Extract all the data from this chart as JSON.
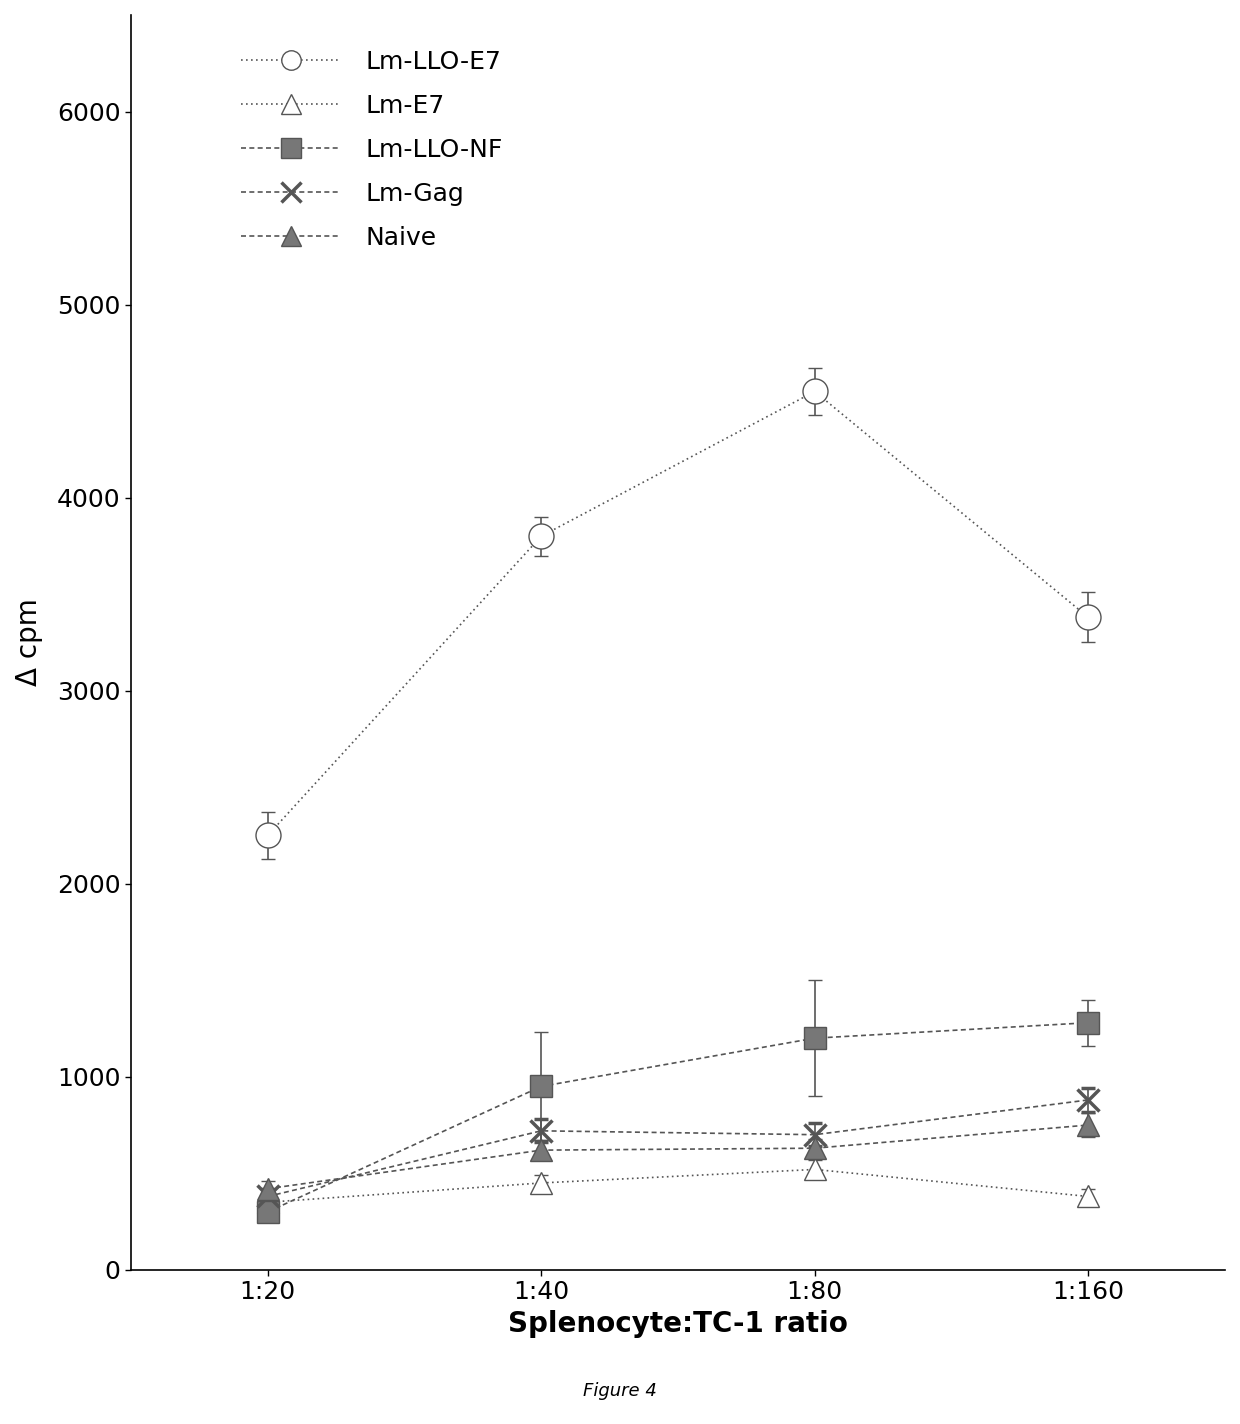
{
  "x_labels": [
    "1:20",
    "1:40",
    "1:80",
    "1:160"
  ],
  "x_values": [
    1,
    2,
    3,
    4
  ],
  "series": {
    "Lm-LLO-E7": {
      "y": [
        2250,
        3800,
        4550,
        3380
      ],
      "yerr": [
        120,
        100,
        120,
        130
      ],
      "marker": "o",
      "color": "#555555",
      "markersize": 18,
      "linewidth": 1.2,
      "markerfacecolor": "white",
      "markeredgecolor": "#555555",
      "dashed": false,
      "dotted_fine": true
    },
    "Lm-E7": {
      "y": [
        350,
        450,
        520,
        380
      ],
      "yerr": [
        30,
        40,
        50,
        40
      ],
      "marker": "^",
      "color": "#555555",
      "markersize": 16,
      "linewidth": 1.2,
      "markerfacecolor": "white",
      "markeredgecolor": "#555555",
      "dashed": false,
      "dotted_fine": true
    },
    "Lm-LLO-NF": {
      "y": [
        300,
        950,
        1200,
        1280
      ],
      "yerr": [
        50,
        280,
        300,
        120
      ],
      "marker": "s",
      "color": "#555555",
      "markersize": 16,
      "linewidth": 1.2,
      "markerfacecolor": "#777777",
      "markeredgecolor": "#555555",
      "dashed": true,
      "dotted_fine": false
    },
    "Lm-Gag": {
      "y": [
        380,
        720,
        700,
        880
      ],
      "yerr": [
        40,
        60,
        60,
        60
      ],
      "marker": "x",
      "color": "#555555",
      "markersize": 16,
      "linewidth": 1.2,
      "markerfacecolor": "#555555",
      "markeredgecolor": "#555555",
      "dashed": true,
      "dotted_fine": false
    },
    "Naive": {
      "y": [
        420,
        620,
        630,
        750
      ],
      "yerr": [
        40,
        50,
        50,
        60
      ],
      "marker": "^",
      "color": "#555555",
      "markersize": 16,
      "linewidth": 1.2,
      "markerfacecolor": "#777777",
      "markeredgecolor": "#555555",
      "dashed": true,
      "dotted_fine": false
    }
  },
  "series_order": [
    "Lm-LLO-E7",
    "Lm-E7",
    "Lm-LLO-NF",
    "Lm-Gag",
    "Naive"
  ],
  "xlabel": "Splenocyte:TC-1 ratio",
  "ylabel": "Δ cpm",
  "ylim": [
    0,
    6500
  ],
  "yticks": [
    0,
    1000,
    2000,
    3000,
    4000,
    5000,
    6000
  ],
  "figure_caption": "Figure 4",
  "label_fontsize": 20,
  "tick_fontsize": 18,
  "legend_fontsize": 18,
  "caption_fontsize": 13
}
